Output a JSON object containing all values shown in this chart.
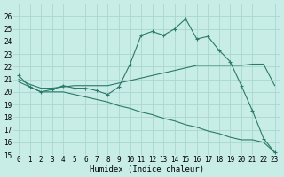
{
  "xlabel": "Humidex (Indice chaleur)",
  "bg_color": "#c8ece6",
  "grid_color": "#a8d8d0",
  "line_color": "#2a7a6a",
  "xlim": [
    -0.5,
    23.5
  ],
  "ylim": [
    15,
    27
  ],
  "yticks": [
    15,
    16,
    17,
    18,
    19,
    20,
    21,
    22,
    23,
    24,
    25,
    26
  ],
  "xticks": [
    0,
    1,
    2,
    3,
    4,
    5,
    6,
    7,
    8,
    9,
    10,
    11,
    12,
    13,
    14,
    15,
    16,
    17,
    18,
    19,
    20,
    21,
    22,
    23
  ],
  "line1_x": [
    0,
    1,
    2,
    3,
    4,
    5,
    6,
    7,
    8,
    9,
    10,
    11,
    12,
    13,
    14,
    15,
    16,
    17,
    18,
    19,
    20,
    21,
    22,
    23
  ],
  "line1_y": [
    21.3,
    20.4,
    20.0,
    20.2,
    20.5,
    20.3,
    20.3,
    20.1,
    19.8,
    20.4,
    22.2,
    24.5,
    24.8,
    24.5,
    25.0,
    25.8,
    24.2,
    24.4,
    23.3,
    22.4,
    20.5,
    18.5,
    16.3,
    15.2
  ],
  "line2_x": [
    0,
    1,
    2,
    3,
    4,
    5,
    6,
    7,
    8,
    9,
    10,
    11,
    12,
    13,
    14,
    15,
    16,
    17,
    18,
    19,
    20,
    21,
    22,
    23
  ],
  "line2_y": [
    21.0,
    20.6,
    20.3,
    20.3,
    20.4,
    20.5,
    20.5,
    20.5,
    20.5,
    20.7,
    20.9,
    21.1,
    21.3,
    21.5,
    21.7,
    21.9,
    22.1,
    22.1,
    22.1,
    22.1,
    22.1,
    22.2,
    22.2,
    20.5
  ],
  "line3_x": [
    0,
    1,
    2,
    3,
    4,
    5,
    6,
    7,
    8,
    9,
    10,
    11,
    12,
    13,
    14,
    15,
    16,
    17,
    18,
    19,
    20,
    21,
    22,
    23
  ],
  "line3_y": [
    20.8,
    20.4,
    20.0,
    20.0,
    20.0,
    19.8,
    19.6,
    19.4,
    19.2,
    18.9,
    18.7,
    18.4,
    18.2,
    17.9,
    17.7,
    17.4,
    17.2,
    16.9,
    16.7,
    16.4,
    16.2,
    16.2,
    16.0,
    15.2
  ],
  "tick_fontsize": 5.5,
  "label_fontsize": 6.5
}
